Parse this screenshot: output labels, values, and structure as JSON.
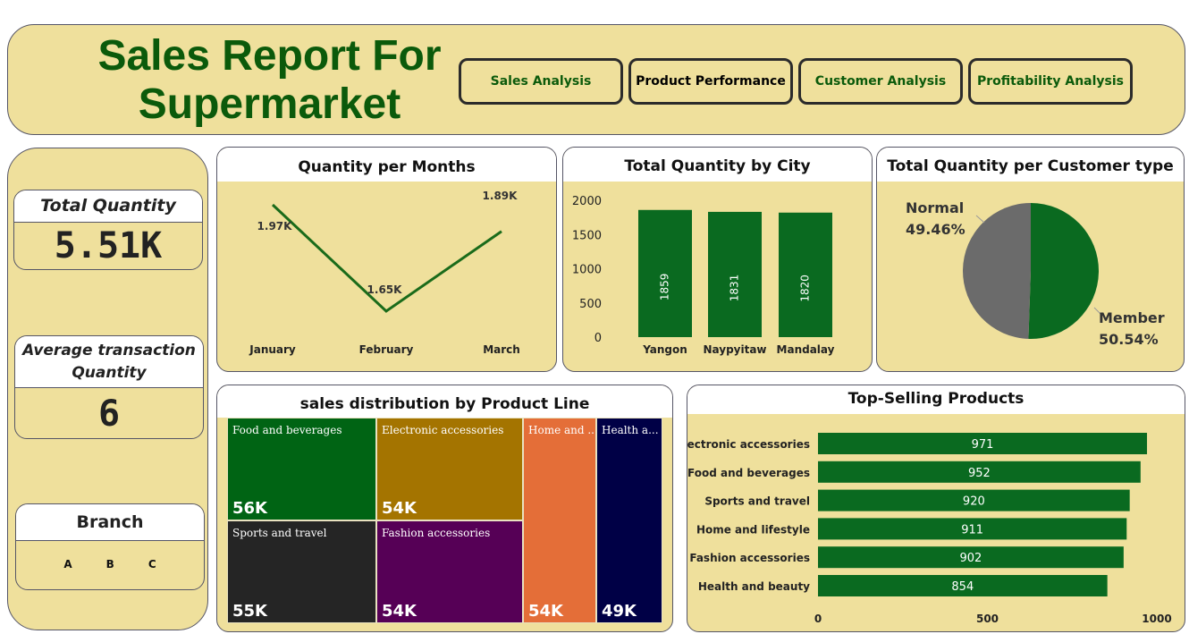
{
  "header": {
    "title_line1": "Sales Report For",
    "title_line2": "Supermarket",
    "nav": [
      {
        "label": "Sales Analysis"
      },
      {
        "label": "Product Performance"
      },
      {
        "label": "Customer Analysis"
      },
      {
        "label": "Profitability Analysis"
      }
    ]
  },
  "kpis": {
    "total_quantity_label": "Total Quantity",
    "total_quantity_value": "5.51K",
    "avg_label_line1": "Average transaction",
    "avg_label_line2": "Quantity",
    "avg_value": "6",
    "branch_label": "Branch",
    "branches": [
      "A",
      "B",
      "C"
    ]
  },
  "chart_data": [
    {
      "type": "line",
      "title": "Quantity per Months",
      "categories": [
        "January",
        "February",
        "March"
      ],
      "values": [
        1970,
        1650,
        1890
      ],
      "data_labels": [
        "1.97K",
        "1.65K",
        "1.89K"
      ],
      "color": "#1a6b1a"
    },
    {
      "type": "bar",
      "title": "Total Quantity by City",
      "categories": [
        "Yangon",
        "Naypyitaw",
        "Mandalay"
      ],
      "values": [
        1859,
        1831,
        1820
      ],
      "yticks": [
        "0",
        "500",
        "1000",
        "1500",
        "2000"
      ],
      "ylim": [
        0,
        2000
      ],
      "color": "#0a6a20"
    },
    {
      "type": "pie",
      "title": "Total Quantity per Customer type",
      "slices": [
        {
          "name": "Member",
          "value": 50.54,
          "label": "50.54%",
          "color": "#0a6a20"
        },
        {
          "name": "Normal",
          "value": 49.46,
          "label": "49.46%",
          "color": "#6b6b6b"
        }
      ]
    },
    {
      "type": "treemap",
      "title": "sales distribution by Product Line",
      "cells": [
        {
          "name": "Food and beverages",
          "value": "56K",
          "color": "#006414"
        },
        {
          "name": "Electronic accessories",
          "value": "54K",
          "color": "#a47400"
        },
        {
          "name": "Sports and travel",
          "value": "55K",
          "color": "#252525"
        },
        {
          "name": "Fashion accessories",
          "value": "54K",
          "color": "#560056"
        },
        {
          "name": "Home and ...",
          "value": "54K",
          "color": "#e46e38"
        },
        {
          "name": "Health a...",
          "value": "49K",
          "color": "#000046"
        }
      ]
    },
    {
      "type": "bar",
      "orientation": "horizontal",
      "title": "Top-Selling Products",
      "categories": [
        "Electronic accessories",
        "Food and beverages",
        "Sports and travel",
        "Home and lifestyle",
        "Fashion accessories",
        "Health and beauty"
      ],
      "values": [
        971,
        952,
        920,
        911,
        902,
        854
      ],
      "xticks": [
        "0",
        "500",
        "1000"
      ],
      "xlim": [
        0,
        1000
      ],
      "color": "#0a6a20"
    }
  ]
}
